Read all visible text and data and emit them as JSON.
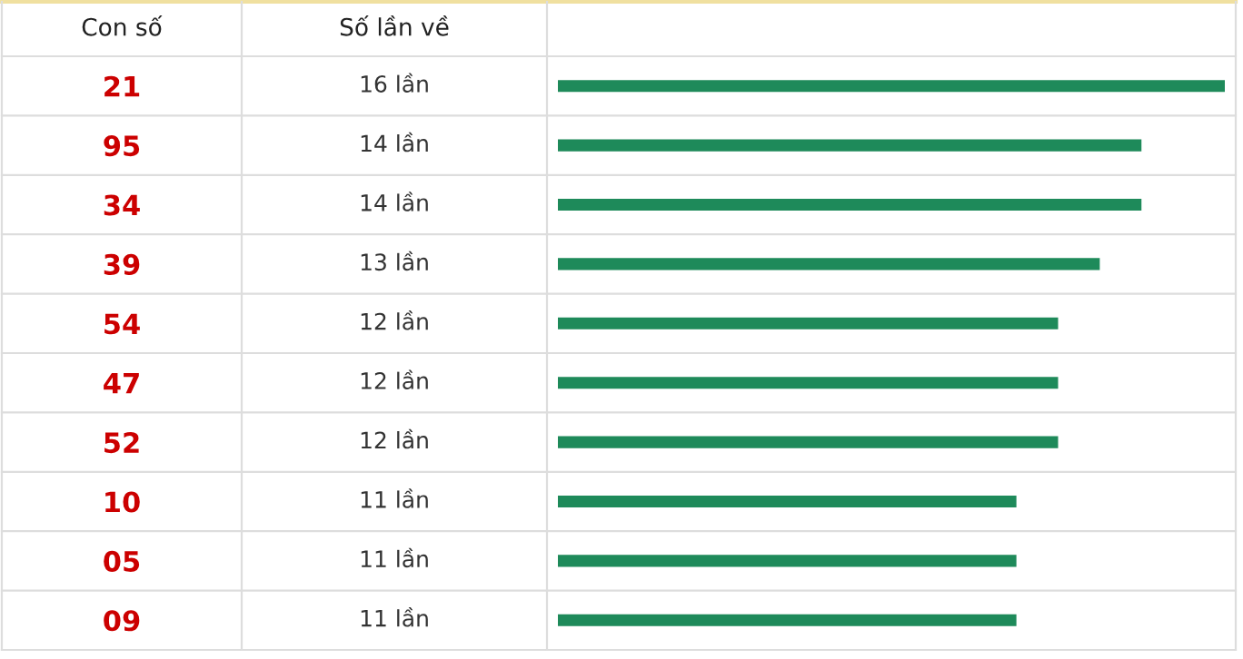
{
  "chart_data": {
    "type": "bar",
    "orientation": "horizontal",
    "categories": [
      "21",
      "95",
      "34",
      "39",
      "54",
      "47",
      "52",
      "10",
      "05",
      "09"
    ],
    "values": [
      16,
      14,
      14,
      13,
      12,
      12,
      12,
      11,
      11,
      11
    ],
    "value_labels": [
      "16 lần",
      "14 lần",
      "14 lần",
      "13 lần",
      "12 lần",
      "12 lần",
      "12 lần",
      "11 lần",
      "11 lần",
      "11 lần"
    ],
    "color": "#1e8a5a",
    "xlim": [
      0,
      16
    ],
    "tick_labels": "y",
    "grid": false,
    "legend": false,
    "annotations": [
      "Con số",
      "Số lần về"
    ]
  }
}
